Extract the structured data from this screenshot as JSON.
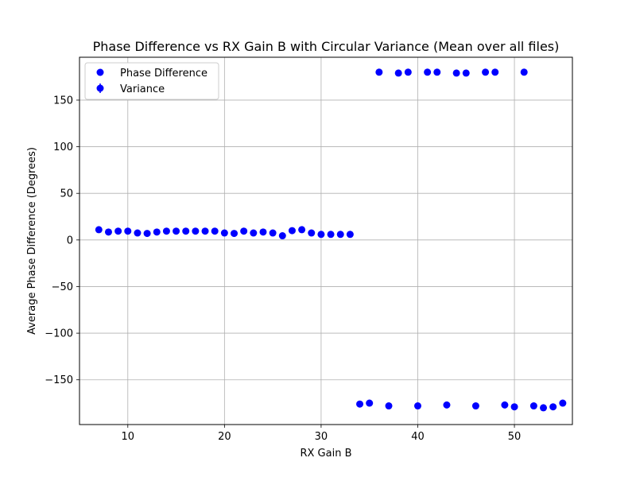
{
  "chart_data": {
    "type": "scatter",
    "title": "Phase Difference vs RX Gain B with Circular Variance (Mean over all files)",
    "xlabel": "RX Gain B",
    "ylabel": "Average Phase Difference (Degrees)",
    "xlim": [
      5,
      56
    ],
    "ylim": [
      -198,
      196
    ],
    "xticks": [
      10,
      20,
      30,
      40,
      50
    ],
    "yticks": [
      -150,
      -100,
      -50,
      0,
      50,
      100,
      150
    ],
    "xtick_labels": [
      "10",
      "20",
      "30",
      "40",
      "50"
    ],
    "ytick_labels": [
      "−150",
      "−100",
      "−50",
      "0",
      "50",
      "100",
      "150"
    ],
    "grid": true,
    "legend_position": "upper-left",
    "series": [
      {
        "name": "Phase Difference",
        "color": "#0000ff",
        "marker": "circle",
        "x": [
          7,
          8,
          9,
          10,
          11,
          12,
          13,
          14,
          15,
          16,
          17,
          18,
          19,
          20,
          21,
          22,
          23,
          24,
          25,
          26,
          27,
          28,
          29,
          30,
          31,
          32,
          33,
          34,
          35,
          36,
          37,
          38,
          39,
          40,
          41,
          42,
          43,
          44,
          45,
          46,
          47,
          48,
          49,
          50,
          51,
          52,
          53,
          54,
          55
        ],
        "y": [
          11,
          8.5,
          9.5,
          9.5,
          7.5,
          7,
          8.5,
          9.5,
          9.5,
          9.5,
          9.5,
          9.5,
          9.5,
          7.5,
          7,
          9.5,
          7.5,
          8.5,
          7.5,
          4.5,
          10,
          11,
          7.5,
          6,
          6,
          6,
          6,
          -176,
          -175,
          180,
          -178,
          179,
          180,
          -178,
          180,
          180,
          -177,
          179,
          179,
          -178,
          180,
          180,
          -177,
          -179,
          180,
          -178,
          -180,
          -179,
          -175
        ]
      },
      {
        "name": "Variance",
        "color": "#0000ff",
        "marker": "errorbar",
        "x": [],
        "y": []
      }
    ]
  }
}
